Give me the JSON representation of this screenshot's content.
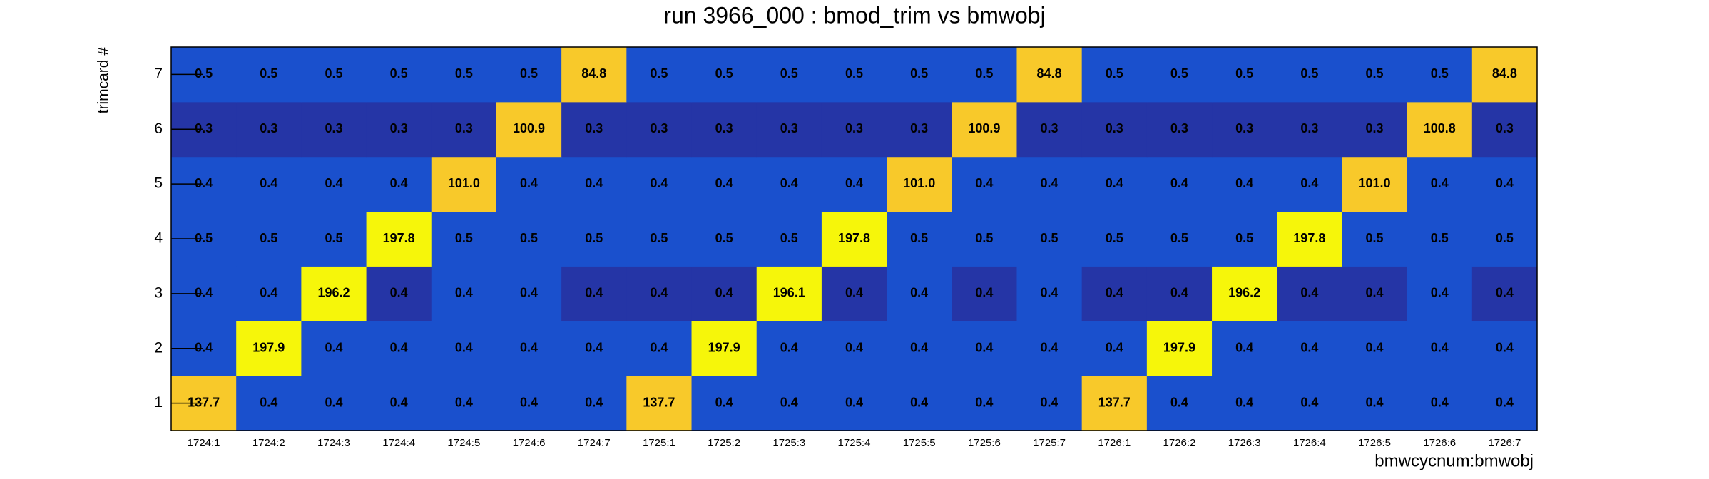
{
  "chart_data": {
    "type": "heatmap",
    "title": "run 3966_000 : bmod_trim vs bmwobj",
    "x_label": "bmwcycnum:bmwobj",
    "y_label": "trimcard #",
    "categories": [
      "1724:1",
      "1724:2",
      "1724:3",
      "1724:4",
      "1724:5",
      "1724:6",
      "1724:7",
      "1725:1",
      "1725:2",
      "1725:3",
      "1725:4",
      "1725:5",
      "1725:6",
      "1725:7",
      "1726:1",
      "1726:2",
      "1726:3",
      "1726:4",
      "1726:5",
      "1726:6",
      "1726:7"
    ],
    "y": [
      1,
      2,
      3,
      4,
      5,
      6,
      7
    ],
    "values": [
      [
        137.7,
        0.4,
        0.4,
        0.4,
        0.4,
        0.4,
        0.4,
        137.7,
        0.4,
        0.4,
        0.4,
        0.4,
        0.4,
        0.4,
        137.7,
        0.4,
        0.4,
        0.4,
        0.4,
        0.4,
        0.4
      ],
      [
        0.4,
        197.9,
        0.4,
        0.4,
        0.4,
        0.4,
        0.4,
        0.4,
        197.9,
        0.4,
        0.4,
        0.4,
        0.4,
        0.4,
        0.4,
        197.9,
        0.4,
        0.4,
        0.4,
        0.4,
        0.4
      ],
      [
        0.4,
        0.4,
        196.2,
        0.36,
        0.4,
        0.4,
        0.36,
        0.36,
        0.36,
        196.1,
        0.36,
        0.4,
        0.36,
        0.4,
        0.36,
        0.36,
        196.2,
        0.36,
        0.36,
        0.4,
        0.36
      ],
      [
        0.5,
        0.5,
        0.5,
        197.8,
        0.5,
        0.5,
        0.5,
        0.5,
        0.5,
        0.5,
        197.8,
        0.5,
        0.5,
        0.5,
        0.5,
        0.5,
        0.5,
        197.8,
        0.5,
        0.5,
        0.5
      ],
      [
        0.4,
        0.4,
        0.4,
        0.4,
        101.0,
        0.4,
        0.4,
        0.4,
        0.4,
        0.4,
        0.4,
        101.0,
        0.4,
        0.4,
        0.4,
        0.4,
        0.4,
        0.4,
        101.0,
        0.4,
        0.4
      ],
      [
        0.3,
        0.3,
        0.3,
        0.3,
        0.3,
        100.9,
        0.3,
        0.3,
        0.3,
        0.3,
        0.3,
        0.3,
        100.9,
        0.3,
        0.3,
        0.3,
        0.3,
        0.3,
        0.3,
        100.8,
        0.3
      ],
      [
        0.5,
        0.5,
        0.5,
        0.5,
        0.5,
        0.5,
        84.8,
        0.5,
        0.5,
        0.5,
        0.5,
        0.5,
        0.5,
        84.8,
        0.5,
        0.5,
        0.5,
        0.5,
        0.5,
        0.5,
        84.8
      ]
    ],
    "value_labels": [
      [
        "137.7",
        "0.4",
        "0.4",
        "0.4",
        "0.4",
        "0.4",
        "0.4",
        "137.7",
        "0.4",
        "0.4",
        "0.4",
        "0.4",
        "0.4",
        "0.4",
        "137.7",
        "0.4",
        "0.4",
        "0.4",
        "0.4",
        "0.4",
        "0.4"
      ],
      [
        "0.4",
        "197.9",
        "0.4",
        "0.4",
        "0.4",
        "0.4",
        "0.4",
        "0.4",
        "197.9",
        "0.4",
        "0.4",
        "0.4",
        "0.4",
        "0.4",
        "0.4",
        "197.9",
        "0.4",
        "0.4",
        "0.4",
        "0.4",
        "0.4"
      ],
      [
        "0.4",
        "0.4",
        "196.2",
        "0.4",
        "0.4",
        "0.4",
        "0.4",
        "0.4",
        "0.4",
        "196.1",
        "0.4",
        "0.4",
        "0.4",
        "0.4",
        "0.4",
        "0.4",
        "196.2",
        "0.4",
        "0.4",
        "0.4",
        "0.4"
      ],
      [
        "0.5",
        "0.5",
        "0.5",
        "197.8",
        "0.5",
        "0.5",
        "0.5",
        "0.5",
        "0.5",
        "0.5",
        "197.8",
        "0.5",
        "0.5",
        "0.5",
        "0.5",
        "0.5",
        "0.5",
        "197.8",
        "0.5",
        "0.5",
        "0.5"
      ],
      [
        "0.4",
        "0.4",
        "0.4",
        "0.4",
        "101.0",
        "0.4",
        "0.4",
        "0.4",
        "0.4",
        "0.4",
        "0.4",
        "101.0",
        "0.4",
        "0.4",
        "0.4",
        "0.4",
        "0.4",
        "0.4",
        "101.0",
        "0.4",
        "0.4"
      ],
      [
        "0.3",
        "0.3",
        "0.3",
        "0.3",
        "0.3",
        "100.9",
        "0.3",
        "0.3",
        "0.3",
        "0.3",
        "0.3",
        "0.3",
        "100.9",
        "0.3",
        "0.3",
        "0.3",
        "0.3",
        "0.3",
        "0.3",
        "100.8",
        "0.3"
      ],
      [
        "0.5",
        "0.5",
        "0.5",
        "0.5",
        "0.5",
        "0.5",
        "84.8",
        "0.5",
        "0.5",
        "0.5",
        "0.5",
        "0.5",
        "0.5",
        "84.8",
        "0.5",
        "0.5",
        "0.5",
        "0.5",
        "0.5",
        "0.5",
        "84.8"
      ]
    ],
    "zcontours": [
      0.38,
      50,
      150
    ],
    "palette": [
      "#2535a6",
      "#1a50cd",
      "#f8c92a",
      "#f6f60a"
    ]
  }
}
